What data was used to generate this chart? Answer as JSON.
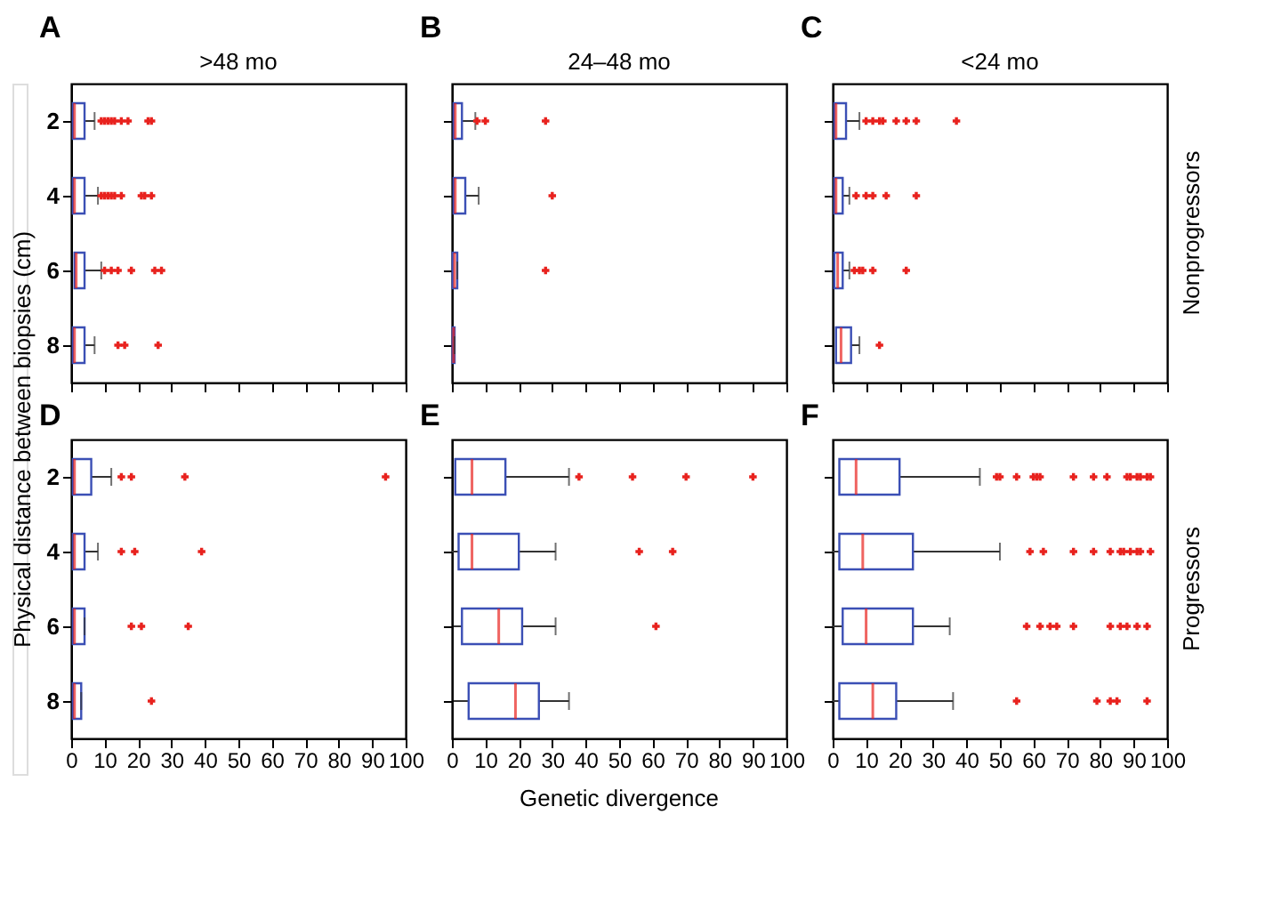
{
  "chart_data": [
    {
      "type": "box",
      "title": "A",
      "subtitle": ">48 mo",
      "ylabel": "Physical distance between biopsies (cm)",
      "orientation": "horizontal",
      "categories": [
        "2",
        "4",
        "6",
        "8"
      ],
      "xlim": [
        0,
        100
      ],
      "xticks": [
        0,
        10,
        20,
        30,
        40,
        50,
        60,
        70,
        80,
        90,
        100
      ],
      "tick_labels": "y",
      "marker": "cross",
      "series": [
        {
          "color": "#3b4fb5",
          "boxes": [
            {
              "low": 0.5,
              "q1": 0.5,
              "median": 1,
              "q3": 4,
              "high": 7,
              "outliers": [
                9,
                10,
                11,
                12,
                13,
                15,
                17,
                23,
                24
              ]
            },
            {
              "low": 0.5,
              "q1": 0.5,
              "median": 1,
              "q3": 4,
              "high": 8,
              "outliers": [
                9,
                10,
                11,
                12,
                13,
                15,
                21,
                22,
                24
              ]
            },
            {
              "low": 1,
              "q1": 1,
              "median": 1.5,
              "q3": 4,
              "high": 9,
              "outliers": [
                10,
                12,
                14,
                18,
                25,
                27
              ]
            },
            {
              "low": 0.5,
              "q1": 0.5,
              "median": 1,
              "q3": 4,
              "high": 7,
              "outliers": [
                14,
                16,
                26
              ]
            }
          ]
        }
      ]
    },
    {
      "type": "box",
      "title": "B",
      "subtitle": "24–48 mo",
      "orientation": "horizontal",
      "categories": [
        null,
        null,
        null,
        null
      ],
      "xlim": [
        0,
        100
      ],
      "xticks": [
        0,
        10,
        20,
        30,
        40,
        50,
        60,
        70,
        80,
        90,
        100
      ],
      "tick_labels": false,
      "marker": "cross",
      "series": [
        {
          "color": "#3b4fb5",
          "boxes": [
            {
              "low": 0.5,
              "q1": 0.5,
              "median": 1,
              "q3": 3,
              "high": 7,
              "outliers": [
                7.5,
                10,
                28
              ]
            },
            {
              "low": 0.5,
              "q1": 0.5,
              "median": 1,
              "q3": 4,
              "high": 8,
              "outliers": [
                30
              ]
            },
            {
              "low": 0.2,
              "q1": 0.2,
              "median": 0.8,
              "q3": 1.6,
              "high": 1.6,
              "outliers": [
                28
              ]
            },
            {
              "low": 0.2,
              "q1": 0.2,
              "median": 0.5,
              "q3": 0.8,
              "high": 0.8
            }
          ]
        }
      ]
    },
    {
      "type": "box",
      "title": "C",
      "subtitle": "<24 mo",
      "y2label": "Nonprogressors",
      "orientation": "horizontal",
      "categories": [
        null,
        null,
        null,
        null
      ],
      "xlim": [
        0,
        100
      ],
      "xticks": [
        0,
        10,
        20,
        30,
        40,
        50,
        60,
        70,
        80,
        90,
        100
      ],
      "tick_labels": false,
      "marker": "cross",
      "series": [
        {
          "color": "#3b4fb5",
          "boxes": [
            {
              "low": 0.5,
              "q1": 0.5,
              "median": 1,
              "q3": 4,
              "high": 8,
              "outliers": [
                10,
                12,
                14,
                15,
                19,
                22,
                25,
                37
              ]
            },
            {
              "low": 0.5,
              "q1": 0.5,
              "median": 1,
              "q3": 3,
              "high": 5,
              "outliers": [
                7,
                10,
                12,
                16,
                25
              ]
            },
            {
              "low": 0.5,
              "q1": 0.5,
              "median": 1.5,
              "q3": 3,
              "high": 5,
              "outliers": [
                6.5,
                8,
                9,
                12,
                22
              ]
            },
            {
              "low": 1,
              "q1": 1,
              "median": 2.5,
              "q3": 5.5,
              "high": 8,
              "outliers": [
                14
              ]
            }
          ]
        }
      ]
    },
    {
      "type": "box",
      "title": "D",
      "orientation": "horizontal",
      "categories": [
        "2",
        "4",
        "6",
        "8"
      ],
      "xlim": [
        0,
        100
      ],
      "xticks": [
        0,
        10,
        20,
        30,
        40,
        50,
        60,
        70,
        80,
        90,
        100
      ],
      "marker": "cross",
      "series": [
        {
          "color": "#3b4fb5",
          "boxes": [
            {
              "low": 0.5,
              "q1": 0.5,
              "median": 1,
              "q3": 6,
              "high": 12,
              "outliers": [
                15,
                18,
                34,
                94
              ]
            },
            {
              "low": 0.5,
              "q1": 0.5,
              "median": 1,
              "q3": 4,
              "high": 8,
              "outliers": [
                15,
                19,
                39
              ]
            },
            {
              "low": 0.5,
              "q1": 0.5,
              "median": 1,
              "q3": 4,
              "high": 4,
              "outliers": [
                18,
                21,
                35
              ]
            },
            {
              "low": 0.5,
              "q1": 0.5,
              "median": 1,
              "q3": 3,
              "high": 3,
              "outliers": [
                24
              ]
            }
          ]
        }
      ]
    },
    {
      "type": "box",
      "title": "E",
      "xlabel": "Genetic divergence",
      "orientation": "horizontal",
      "categories": [
        null,
        null,
        null,
        null
      ],
      "xlim": [
        0,
        100
      ],
      "xticks": [
        0,
        10,
        20,
        30,
        40,
        50,
        60,
        70,
        80,
        90,
        100
      ],
      "tick_labels": "x",
      "marker": "cross",
      "series": [
        {
          "color": "#3b4fb5",
          "boxes": [
            {
              "low": 1,
              "q1": 1,
              "median": 6,
              "q3": 16,
              "high": 35,
              "outliers": [
                38,
                54,
                70,
                90
              ]
            },
            {
              "low": 0,
              "q1": 2,
              "median": 6,
              "q3": 20,
              "high": 31,
              "outliers": [
                56,
                66
              ]
            },
            {
              "low": 0.5,
              "q1": 3,
              "median": 14,
              "q3": 21,
              "high": 31,
              "outliers": [
                61
              ]
            },
            {
              "low": 0.5,
              "q1": 5,
              "median": 19,
              "q3": 26,
              "high": 35
            }
          ]
        }
      ]
    },
    {
      "type": "box",
      "title": "F",
      "y2label": "Progressors",
      "orientation": "horizontal",
      "categories": [
        null,
        null,
        null,
        null
      ],
      "xlim": [
        0,
        100
      ],
      "xticks": [
        0,
        10,
        20,
        30,
        40,
        50,
        60,
        70,
        80,
        90,
        100
      ],
      "tick_labels": "x",
      "marker": "cross",
      "series": [
        {
          "color": "#3b4fb5",
          "boxes": [
            {
              "low": 2,
              "q1": 2,
              "median": 7,
              "q3": 20,
              "high": 44,
              "outliers": [
                49,
                50,
                55,
                60,
                61,
                62,
                72,
                78,
                82,
                88,
                89,
                91,
                92,
                94,
                95
              ]
            },
            {
              "low": 0,
              "q1": 2,
              "median": 9,
              "q3": 24,
              "high": 50,
              "outliers": [
                59,
                63,
                72,
                78,
                83,
                86,
                87,
                89,
                91,
                92,
                95
              ]
            },
            {
              "low": 0,
              "q1": 3,
              "median": 10,
              "q3": 24,
              "high": 35,
              "outliers": [
                58,
                62,
                65,
                67,
                72,
                83,
                86,
                88,
                91,
                94
              ]
            },
            {
              "low": 0,
              "q1": 2,
              "median": 12,
              "q3": 19,
              "high": 36,
              "outliers": [
                55,
                79,
                83,
                85,
                94
              ]
            }
          ]
        }
      ]
    }
  ]
}
